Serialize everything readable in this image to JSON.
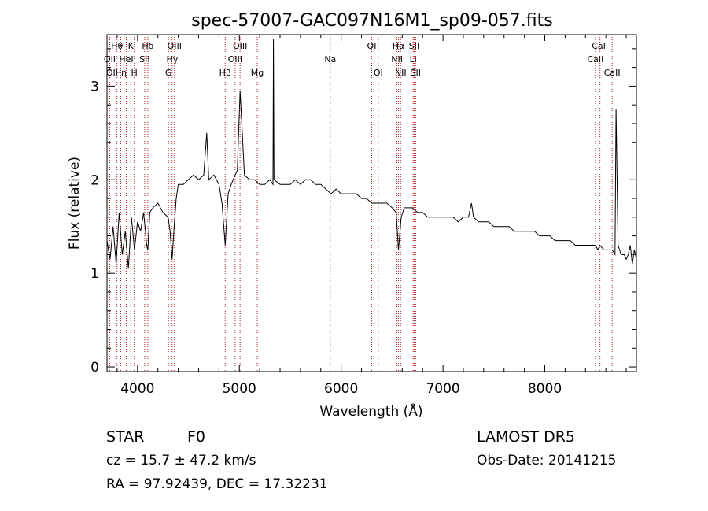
{
  "title": "spec-57007-GAC097N16M1_sp09-057.fits",
  "xlabel": "Wavelength (Å)",
  "ylabel": "Flux (relative)",
  "info": {
    "class": "STAR",
    "subclass": "F0",
    "survey": "LAMOST DR5",
    "cz": "cz = 15.7 ± 47.2 km/s",
    "obs_date": "Obs-Date: 20141215",
    "radec": "RA =  97.92439, DEC =  17.32231"
  },
  "colors": {
    "spectrum": "#000000",
    "line_marker": "#b22222",
    "axes": "#000000"
  },
  "chart_data": {
    "type": "line",
    "title": "spec-57007-GAC097N16M1_sp09-057.fits",
    "xlabel": "Wavelength (Å)",
    "ylabel": "Flux (relative)",
    "xlim": [
      3700,
      8900
    ],
    "ylim": [
      -0.05,
      3.55
    ],
    "xticks": [
      4000,
      5000,
      6000,
      7000,
      8000
    ],
    "yticks": [
      0,
      1,
      2,
      3
    ],
    "grid": false,
    "series": [
      {
        "x": [
          3700,
          3730,
          3760,
          3790,
          3820,
          3850,
          3880,
          3910,
          3940,
          3970,
          4000,
          4030,
          4060,
          4090,
          4101,
          4120,
          4150,
          4200,
          4250,
          4300,
          4320,
          4340,
          4360,
          4380,
          4400,
          4450,
          4500,
          4550,
          4600,
          4650,
          4680,
          4700,
          4750,
          4800,
          4830,
          4861,
          4890,
          4920,
          4959,
          4980,
          5007,
          5050,
          5100,
          5150,
          5200,
          5250,
          5300,
          5330,
          5335,
          5340,
          5400,
          5450,
          5500,
          5550,
          5600,
          5650,
          5700,
          5750,
          5800,
          5850,
          5900,
          5950,
          6000,
          6050,
          6100,
          6150,
          6200,
          6250,
          6300,
          6350,
          6400,
          6450,
          6500,
          6540,
          6563,
          6590,
          6620,
          6650,
          6700,
          6750,
          6800,
          6850,
          6900,
          6950,
          7000,
          7050,
          7100,
          7150,
          7200,
          7250,
          7280,
          7300,
          7350,
          7400,
          7450,
          7500,
          7550,
          7600,
          7650,
          7700,
          7750,
          7800,
          7850,
          7900,
          7950,
          8000,
          8050,
          8100,
          8150,
          8200,
          8250,
          8300,
          8350,
          8400,
          8450,
          8498,
          8520,
          8542,
          8580,
          8620,
          8662,
          8690,
          8700,
          8720,
          8750,
          8780,
          8800,
          8820,
          8840,
          8860,
          8880,
          8900
        ],
        "y": [
          1.35,
          1.15,
          1.5,
          1.1,
          1.65,
          1.2,
          1.45,
          1.05,
          1.6,
          1.25,
          1.55,
          1.45,
          1.65,
          1.3,
          1.25,
          1.65,
          1.7,
          1.75,
          1.65,
          1.6,
          1.45,
          1.15,
          1.5,
          1.8,
          1.95,
          1.95,
          2.0,
          2.05,
          2.0,
          2.05,
          2.5,
          2.0,
          2.05,
          1.95,
          1.75,
          1.3,
          1.85,
          1.95,
          2.05,
          2.1,
          2.95,
          2.05,
          2.0,
          2.0,
          1.95,
          1.95,
          2.0,
          1.95,
          3.5,
          2.0,
          1.95,
          1.95,
          1.95,
          2.0,
          1.95,
          2.0,
          2.0,
          1.95,
          1.95,
          1.9,
          1.85,
          1.9,
          1.85,
          1.85,
          1.85,
          1.85,
          1.8,
          1.8,
          1.75,
          1.75,
          1.75,
          1.75,
          1.7,
          1.65,
          1.25,
          1.6,
          1.7,
          1.7,
          1.7,
          1.65,
          1.65,
          1.6,
          1.6,
          1.6,
          1.6,
          1.6,
          1.6,
          1.55,
          1.6,
          1.6,
          1.75,
          1.6,
          1.55,
          1.55,
          1.55,
          1.5,
          1.5,
          1.5,
          1.5,
          1.45,
          1.45,
          1.45,
          1.45,
          1.45,
          1.4,
          1.4,
          1.4,
          1.35,
          1.35,
          1.35,
          1.35,
          1.3,
          1.3,
          1.3,
          1.3,
          1.3,
          1.25,
          1.3,
          1.25,
          1.25,
          1.25,
          1.2,
          2.75,
          1.3,
          1.2,
          1.2,
          1.15,
          1.2,
          1.3,
          1.1,
          1.25,
          1.15
        ]
      }
    ],
    "line_markers": [
      {
        "x": 3727,
        "label": "OII",
        "row": 2
      },
      {
        "x": 3750,
        "label": "OII",
        "row": 3
      },
      {
        "x": 3798,
        "label": "Hθ",
        "row": 1
      },
      {
        "x": 3835,
        "label": "Hη",
        "row": 3
      },
      {
        "x": 3889,
        "label": "HeI",
        "row": 2
      },
      {
        "x": 3934,
        "label": "K",
        "row": 1
      },
      {
        "x": 3968,
        "label": "H",
        "row": 3
      },
      {
        "x": 4070,
        "label": "SII",
        "row": 2
      },
      {
        "x": 4101,
        "label": "Hδ",
        "row": 1
      },
      {
        "x": 4304,
        "label": "G",
        "row": 3
      },
      {
        "x": 4340,
        "label": "Hγ",
        "row": 2
      },
      {
        "x": 4363,
        "label": "OIII",
        "row": 1
      },
      {
        "x": 4861,
        "label": "Hβ",
        "row": 3
      },
      {
        "x": 4959,
        "label": "OIII",
        "row": 2
      },
      {
        "x": 5007,
        "label": "OIII",
        "row": 1
      },
      {
        "x": 5176,
        "label": "Mg",
        "row": 3
      },
      {
        "x": 5893,
        "label": "Na",
        "row": 2
      },
      {
        "x": 6300,
        "label": "OI",
        "row": 1
      },
      {
        "x": 6364,
        "label": "OI",
        "row": 3
      },
      {
        "x": 6548,
        "label": "NII",
        "row": 2
      },
      {
        "x": 6563,
        "label": "Hα",
        "row": 1
      },
      {
        "x": 6584,
        "label": "NII",
        "row": 3
      },
      {
        "x": 6707,
        "label": "Li",
        "row": 2
      },
      {
        "x": 6717,
        "label": "SII",
        "row": 1
      },
      {
        "x": 6731,
        "label": "SII",
        "row": 3
      },
      {
        "x": 8498,
        "label": "CaII",
        "row": 2
      },
      {
        "x": 8542,
        "label": "CaII",
        "row": 1
      },
      {
        "x": 8662,
        "label": "CaII",
        "row": 3
      }
    ]
  }
}
